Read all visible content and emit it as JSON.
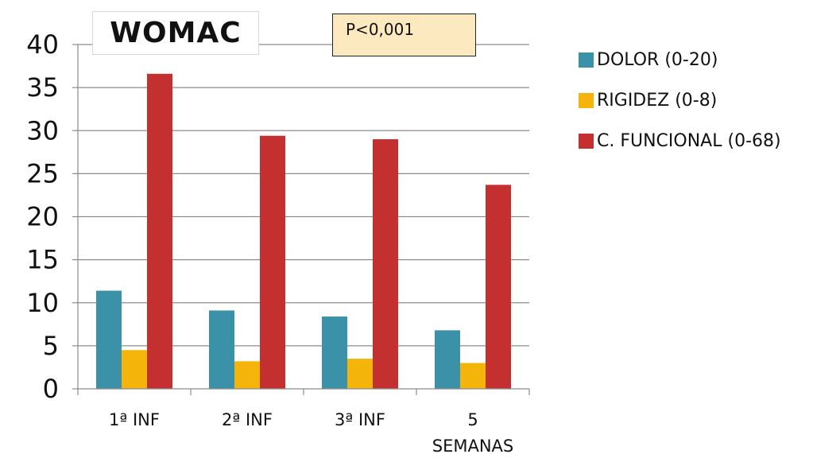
{
  "chart_data": {
    "type": "bar",
    "title": "WOMAC",
    "annotation": "P<0,001",
    "categories": [
      [
        "1ª INF"
      ],
      [
        "2ª INF"
      ],
      [
        "3ª INF"
      ],
      [
        "5",
        "SEMANAS"
      ]
    ],
    "series": [
      {
        "name": "DOLOR (0-20)",
        "color": "#3a91a8",
        "values": [
          11.4,
          9.1,
          8.4,
          6.8
        ]
      },
      {
        "name": "RIGIDEZ (0-8)",
        "color": "#f5b40a",
        "values": [
          4.5,
          3.2,
          3.5,
          3.0
        ]
      },
      {
        "name": "C. FUNCIONAL (0-68)",
        "color": "#c43030",
        "values": [
          36.6,
          29.4,
          29.0,
          23.7
        ]
      }
    ],
    "ylim": [
      0,
      40
    ],
    "yticks": [
      0,
      5,
      10,
      15,
      20,
      25,
      30,
      35,
      40
    ],
    "grid": true,
    "legend_position": "right"
  }
}
